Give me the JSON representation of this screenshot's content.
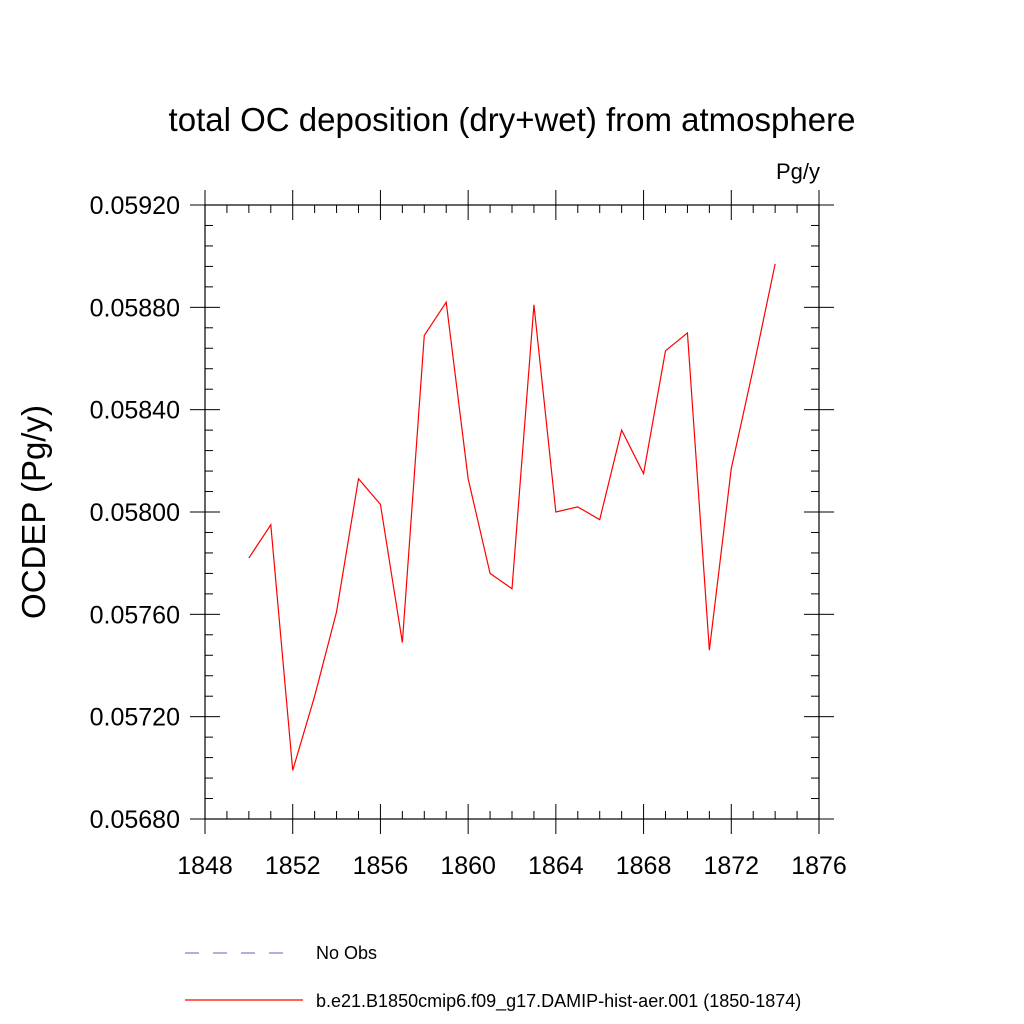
{
  "chart_data": {
    "type": "line",
    "title": "total OC deposition (dry+wet) from atmosphere",
    "units_label": "Pg/y",
    "xlabel": "",
    "ylabel": "OCDEP  (Pg/y)",
    "xlim": [
      1848,
      1876
    ],
    "ylim": [
      0.0568,
      0.0592
    ],
    "x_ticks": [
      1848,
      1852,
      1856,
      1860,
      1864,
      1868,
      1872,
      1876
    ],
    "x_tick_labels": [
      "1848",
      "1852",
      "1856",
      "1860",
      "1864",
      "1868",
      "1872",
      "1876"
    ],
    "y_ticks": [
      0.0568,
      0.0572,
      0.0576,
      0.058,
      0.0584,
      0.0588,
      0.0592
    ],
    "y_tick_labels": [
      "0.05680",
      "0.05720",
      "0.05760",
      "0.05800",
      "0.05840",
      "0.05880",
      "0.05920"
    ],
    "grid": false,
    "legend_position": "bottom",
    "series": [
      {
        "name": "b.e21.B1850cmip6.f09_g17.DAMIP-hist-aer.001 (1850-1874)",
        "color": "#ff0000",
        "dash": "solid",
        "x": [
          1850,
          1851,
          1852,
          1853,
          1854,
          1855,
          1856,
          1857,
          1858,
          1859,
          1860,
          1861,
          1862,
          1863,
          1864,
          1865,
          1866,
          1867,
          1868,
          1869,
          1870,
          1871,
          1872,
          1873,
          1874
        ],
        "values": [
          0.05782,
          0.05795,
          0.05699,
          0.05728,
          0.05761,
          0.05813,
          0.05803,
          0.05749,
          0.05869,
          0.05882,
          0.05813,
          0.05776,
          0.0577,
          0.05881,
          0.058,
          0.05802,
          0.05797,
          0.05832,
          0.05815,
          0.05863,
          0.0587,
          0.05746,
          0.05817,
          0.05856,
          0.05897
        ]
      }
    ],
    "legend": [
      {
        "label": "No Obs",
        "color": "#8080cc",
        "dash": "dashed"
      },
      {
        "label": "b.e21.B1850cmip6.f09_g17.DAMIP-hist-aer.001 (1850-1874)",
        "color": "#ff0000",
        "dash": "solid"
      }
    ]
  }
}
